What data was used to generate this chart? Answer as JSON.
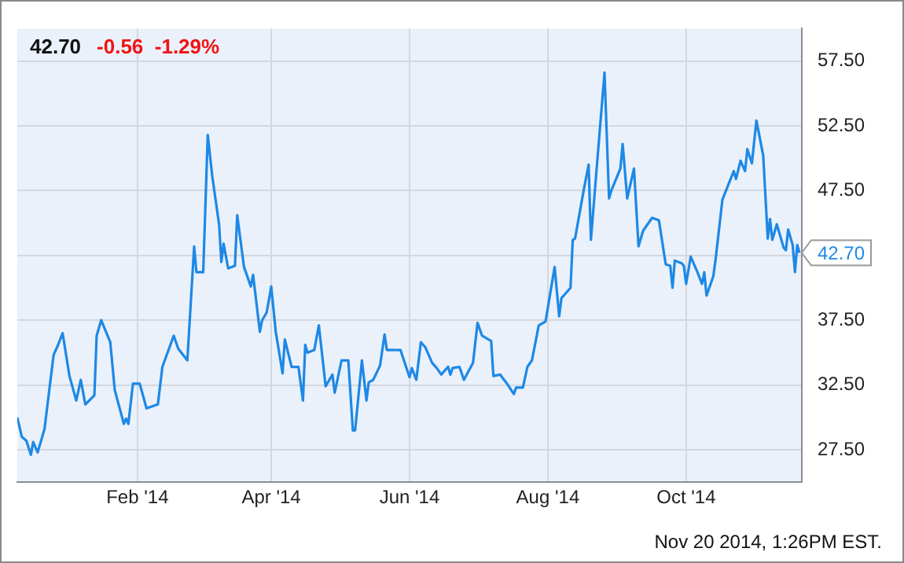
{
  "chart_data": {
    "type": "line",
    "title": "42.70",
    "subtitle": "-0.56  -1.29%",
    "x": [
      "2013-12-10",
      "2013-12-12",
      "2013-12-14",
      "2013-12-16",
      "2013-12-17",
      "2013-12-19",
      "2013-12-22",
      "2013-12-26",
      "2013-12-28",
      "2013-12-30",
      "2014-01-02",
      "2014-01-05",
      "2014-01-07",
      "2014-01-09",
      "2014-01-13",
      "2014-01-14",
      "2014-01-16",
      "2014-01-20",
      "2014-01-22",
      "2014-01-26",
      "2014-01-27",
      "2014-01-28",
      "2014-01-30",
      "2014-02-02",
      "2014-02-05",
      "2014-02-10",
      "2014-02-12",
      "2014-02-17",
      "2014-02-19",
      "2014-02-23",
      "2014-02-26",
      "2014-02-27",
      "2014-03-02",
      "2014-03-04",
      "2014-03-06",
      "2014-03-09",
      "2014-03-10",
      "2014-03-11",
      "2014-03-13",
      "2014-03-16",
      "2014-03-17",
      "2014-03-20",
      "2014-03-23",
      "2014-03-24",
      "2014-03-27",
      "2014-03-28",
      "2014-03-30",
      "2014-04-01",
      "2014-04-03",
      "2014-04-06",
      "2014-04-07",
      "2014-04-10",
      "2014-04-13",
      "2014-04-15",
      "2014-04-16",
      "2014-04-17",
      "2014-04-20",
      "2014-04-22",
      "2014-04-25",
      "2014-04-28",
      "2014-04-29",
      "2014-05-02",
      "2014-05-05",
      "2014-05-07",
      "2014-05-08",
      "2014-05-11",
      "2014-05-13",
      "2014-05-14",
      "2014-05-16",
      "2014-05-19",
      "2014-05-21",
      "2014-05-22",
      "2014-05-28",
      "2014-06-01",
      "2014-06-02",
      "2014-06-04",
      "2014-06-06",
      "2014-06-08",
      "2014-06-11",
      "2014-06-13",
      "2014-06-15",
      "2014-06-18",
      "2014-06-19",
      "2014-06-20",
      "2014-06-23",
      "2014-06-25",
      "2014-06-29",
      "2014-07-01",
      "2014-07-03",
      "2014-07-07",
      "2014-07-08",
      "2014-07-11",
      "2014-07-14",
      "2014-07-17",
      "2014-07-18",
      "2014-07-21",
      "2014-07-23",
      "2014-07-25",
      "2014-07-28",
      "2014-07-31",
      "2014-08-04",
      "2014-08-06",
      "2014-08-07",
      "2014-08-11",
      "2014-08-12",
      "2014-08-13",
      "2014-08-17",
      "2014-08-19",
      "2014-08-20",
      "2014-08-23",
      "2014-08-26",
      "2014-08-28",
      "2014-08-29",
      "2014-09-02",
      "2014-09-03",
      "2014-09-05",
      "2014-09-08",
      "2014-09-10",
      "2014-09-12",
      "2014-09-16",
      "2014-09-19",
      "2014-09-22",
      "2014-09-24",
      "2014-09-25",
      "2014-09-26",
      "2014-09-29",
      "2014-09-30",
      "2014-10-01",
      "2014-10-03",
      "2014-10-06",
      "2014-10-08",
      "2014-10-09",
      "2014-10-10",
      "2014-10-13",
      "2014-10-14",
      "2014-10-17",
      "2014-10-22",
      "2014-10-23",
      "2014-10-25",
      "2014-10-27",
      "2014-10-28",
      "2014-10-30",
      "2014-11-01",
      "2014-11-04",
      "2014-11-06",
      "2014-11-07",
      "2014-11-08",
      "2014-11-10",
      "2014-11-13",
      "2014-11-14",
      "2014-11-15",
      "2014-11-17",
      "2014-11-18",
      "2014-11-19",
      "2014-11-20"
    ],
    "series": [
      {
        "color": "#1e88e5",
        "values": [
          30.0,
          28.5,
          28.2,
          27.1,
          28.1,
          27.3,
          29.1,
          34.8,
          35.6,
          36.5,
          33.2,
          31.3,
          32.9,
          31.0,
          31.7,
          36.3,
          37.5,
          35.8,
          32.1,
          29.5,
          29.9,
          29.5,
          32.6,
          32.6,
          30.7,
          31.0,
          33.9,
          36.3,
          35.3,
          34.4,
          43.2,
          41.2,
          41.2,
          51.8,
          48.6,
          44.9,
          42.0,
          43.4,
          41.5,
          41.7,
          45.6,
          41.6,
          40.1,
          41.0,
          36.6,
          37.5,
          38.1,
          40.1,
          36.6,
          33.4,
          36.0,
          33.9,
          33.9,
          31.3,
          35.6,
          35.0,
          35.2,
          37.1,
          32.4,
          33.3,
          31.9,
          34.4,
          34.4,
          29.0,
          29.0,
          34.4,
          31.3,
          32.7,
          32.9,
          34.0,
          36.4,
          35.2,
          35.2,
          33.1,
          33.8,
          32.9,
          35.8,
          35.4,
          34.2,
          33.8,
          33.3,
          33.9,
          33.3,
          33.8,
          33.9,
          32.9,
          34.2,
          37.3,
          36.3,
          35.9,
          33.2,
          33.3,
          32.6,
          31.8,
          32.3,
          32.3,
          33.9,
          34.4,
          37.1,
          37.4,
          41.6,
          37.8,
          39.2,
          40.0,
          43.7,
          43.8,
          47.7,
          49.5,
          43.7,
          50.2,
          56.6,
          46.9,
          47.5,
          49.2,
          51.1,
          46.9,
          49.2,
          43.2,
          44.4,
          45.4,
          45.2,
          41.8,
          41.7,
          40.0,
          42.1,
          41.9,
          41.7,
          40.3,
          42.4,
          41.2,
          40.3,
          41.2,
          39.4,
          40.9,
          42.2,
          46.8,
          49.0,
          48.4,
          49.8,
          49.0,
          50.7,
          49.6,
          52.9,
          50.2,
          43.8,
          45.3,
          43.7,
          44.9,
          43.1,
          42.9,
          44.5,
          43.3,
          41.2,
          43.3,
          42.7
        ]
      }
    ],
    "xlim": [
      "2013-12-10",
      "2014-11-21"
    ],
    "xticks": [
      {
        "value": "2014-02-01",
        "label": "Feb '14"
      },
      {
        "value": "2014-04-01",
        "label": "Apr '14"
      },
      {
        "value": "2014-06-01",
        "label": "Jun '14"
      },
      {
        "value": "2014-08-01",
        "label": "Aug '14"
      },
      {
        "value": "2014-10-01",
        "label": "Oct '14"
      }
    ],
    "ylim": [
      25,
      60
    ],
    "yticks": [
      {
        "value": 27.5,
        "label": "27.50"
      },
      {
        "value": 32.5,
        "label": "32.50"
      },
      {
        "value": 37.5,
        "label": "37.50"
      },
      {
        "value": 42.5,
        "label": null
      },
      {
        "value": 47.5,
        "label": "47.50"
      },
      {
        "value": 52.5,
        "label": "52.50"
      },
      {
        "value": 57.5,
        "label": "57.50"
      }
    ],
    "grid": true,
    "legend": false,
    "marker": "none",
    "line_style": "solid",
    "annotations": [
      {
        "text": "42.70",
        "x": "2014-11-20",
        "y": 42.7
      },
      "Nov 20 2014, 1:26PM EST."
    ]
  }
}
